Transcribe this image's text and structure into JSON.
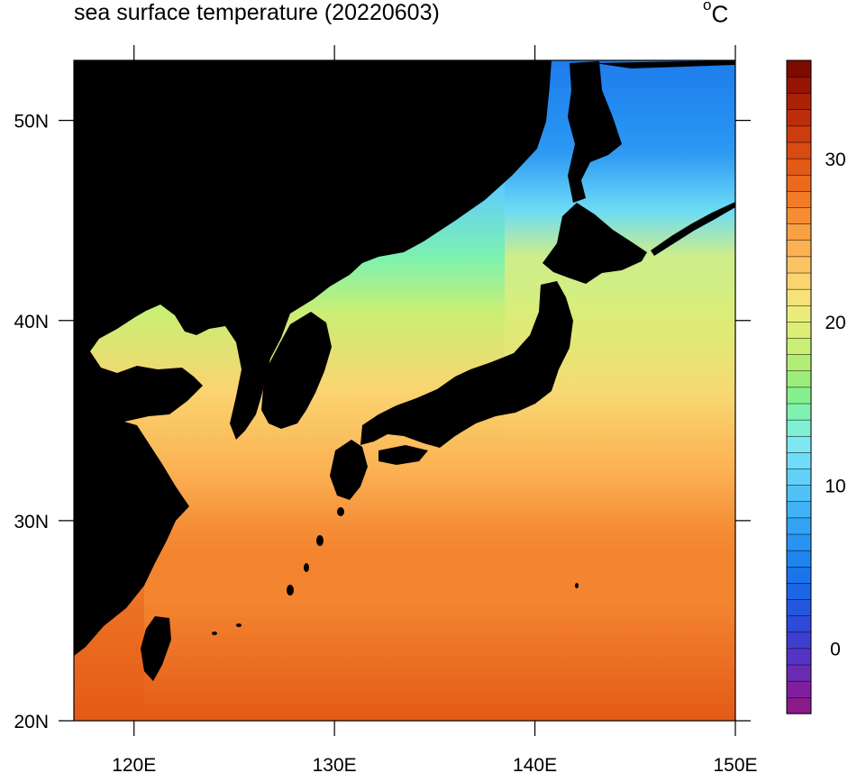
{
  "title": "sea surface temperature (20220603)",
  "unit": {
    "degree": "o",
    "symbol": "C"
  },
  "map": {
    "lon_range": [
      117,
      150
    ],
    "lat_range": [
      20,
      53
    ],
    "lon_ticks": [
      {
        "value": 120,
        "label": "120E"
      },
      {
        "value": 130,
        "label": "130E"
      },
      {
        "value": 140,
        "label": "140E"
      },
      {
        "value": 150,
        "label": "150E"
      }
    ],
    "lat_ticks": [
      {
        "value": 20,
        "label": "20N"
      },
      {
        "value": 30,
        "label": "30N"
      },
      {
        "value": 40,
        "label": "40N"
      },
      {
        "value": 50,
        "label": "50N"
      }
    ],
    "land_color": "#000000"
  },
  "colorbar": {
    "min": -4,
    "max": 36,
    "labels": [
      {
        "value": 0,
        "label": "0"
      },
      {
        "value": 10,
        "label": "10"
      },
      {
        "value": 20,
        "label": "20"
      },
      {
        "value": 30,
        "label": "30"
      }
    ],
    "colors": [
      "#8b1a8b",
      "#7f1fa0",
      "#6a2bb3",
      "#5534c4",
      "#3f3ecf",
      "#2f49d9",
      "#2357e0",
      "#1c66e6",
      "#1a75ea",
      "#1f84ee",
      "#2894f2",
      "#34a3f4",
      "#42b2f5",
      "#52c1f6",
      "#62d0f7",
      "#70ddf8",
      "#7de8f2",
      "#7ff0d2",
      "#7ef2ae",
      "#86f08e",
      "#9bee7a",
      "#b3ee74",
      "#c9ef74",
      "#dcee78",
      "#ecec7c",
      "#f6e27a",
      "#fad470",
      "#fbc462",
      "#fbb253",
      "#f9a044",
      "#f68d35",
      "#f27b28",
      "#ec6a1e",
      "#e35a17",
      "#d84b12",
      "#cc3c0e",
      "#bc2e0b",
      "#aa2108",
      "#951405",
      "#7f0a02"
    ]
  }
}
